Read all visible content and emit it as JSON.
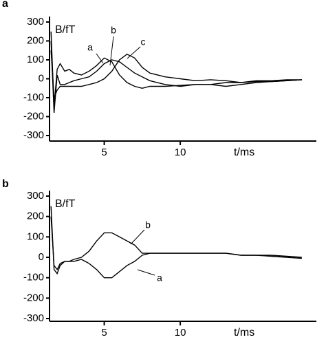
{
  "chart_data": [
    {
      "type": "line",
      "panel_label": "a",
      "ylabel": "B/fT",
      "xlabel": "t/ms",
      "x": [
        1.5,
        1.7,
        1.9,
        2.1,
        2.4,
        2.7,
        3,
        3.5,
        4,
        4.5,
        5,
        5.5,
        6,
        6.5,
        7,
        7.5,
        8,
        9,
        10,
        11,
        12,
        13,
        14,
        15,
        16,
        17,
        18
      ],
      "series": [
        {
          "name": "a",
          "color": "#000000",
          "values": [
            250,
            -150,
            50,
            80,
            40,
            50,
            30,
            20,
            40,
            70,
            110,
            90,
            20,
            -20,
            -40,
            -50,
            -40,
            -40,
            -35,
            -30,
            -30,
            -20,
            -20,
            -15,
            -15,
            -10,
            -5
          ]
        },
        {
          "name": "b",
          "color": "#000000",
          "values": [
            200,
            -180,
            20,
            -30,
            -30,
            -20,
            -10,
            0,
            10,
            40,
            80,
            100,
            90,
            60,
            30,
            10,
            -10,
            -30,
            -40,
            -30,
            -30,
            -40,
            -30,
            -20,
            -15,
            -10,
            -5
          ]
        },
        {
          "name": "c",
          "color": "#000000",
          "values": [
            150,
            -100,
            -60,
            -40,
            -40,
            -40,
            -40,
            -40,
            -30,
            -20,
            0,
            40,
            100,
            130,
            110,
            60,
            30,
            10,
            0,
            -10,
            -5,
            -10,
            -20,
            -10,
            -10,
            -5,
            -5
          ]
        }
      ],
      "xlim": [
        1.4,
        18.5
      ],
      "ylim": [
        -300,
        300
      ],
      "xticks": [
        5,
        10
      ],
      "yticks": [
        -300,
        -200,
        -100,
        0,
        100,
        200,
        300
      ]
    },
    {
      "type": "line",
      "panel_label": "b",
      "ylabel": "B/fT",
      "xlabel": "t/ms",
      "x": [
        1.5,
        1.7,
        1.9,
        2.1,
        2.4,
        2.7,
        3,
        3.5,
        4,
        4.5,
        5,
        5.5,
        6,
        6.5,
        7,
        7.5,
        8,
        9,
        10,
        11,
        12,
        13,
        14,
        15,
        16,
        17,
        18
      ],
      "series": [
        {
          "name": "b",
          "color": "#000000",
          "values": [
            250,
            -60,
            -80,
            -40,
            -20,
            -20,
            -10,
            0,
            30,
            80,
            120,
            120,
            100,
            80,
            60,
            20,
            20,
            20,
            20,
            20,
            20,
            20,
            10,
            10,
            10,
            5,
            0
          ]
        },
        {
          "name": "a",
          "color": "#000000",
          "values": [
            200,
            -40,
            -60,
            -30,
            -20,
            -20,
            -20,
            -10,
            -30,
            -60,
            -100,
            -100,
            -70,
            -40,
            -20,
            10,
            20,
            20,
            20,
            20,
            20,
            20,
            10,
            10,
            5,
            0,
            -5
          ]
        }
      ],
      "xlim": [
        1.4,
        18.5
      ],
      "ylim": [
        -300,
        300
      ],
      "xticks": [
        5,
        10
      ],
      "yticks": [
        -300,
        -200,
        -100,
        0,
        100,
        200,
        300
      ]
    }
  ]
}
